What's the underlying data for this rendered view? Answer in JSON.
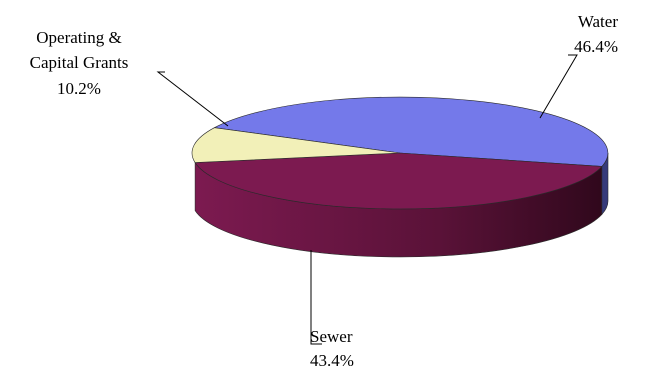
{
  "chart_data": {
    "type": "pie",
    "three_d": true,
    "legend": "none",
    "slices": [
      {
        "name": "Water",
        "value": 46.4,
        "label": "46.4%",
        "color": "#7479EA",
        "side_color": "#363A7A"
      },
      {
        "name": "Sewer",
        "value": 43.4,
        "label": "43.4%",
        "color": "#7C1A50",
        "side_color": "#5A1238"
      },
      {
        "name_lines": [
          "Operating &",
          "Capital Grants"
        ],
        "value": 10.2,
        "label": "10.2%",
        "color": "#F2F0B8",
        "side_color": "#B8B67A"
      }
    ]
  }
}
